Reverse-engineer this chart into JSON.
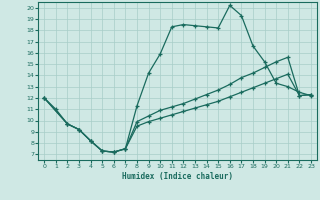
{
  "xlabel": "Humidex (Indice chaleur)",
  "bg_color": "#cfe8e4",
  "line_color": "#1a6b5e",
  "grid_color": "#a8cdc8",
  "xlim": [
    -0.5,
    23.5
  ],
  "ylim": [
    6.5,
    20.5
  ],
  "xticks": [
    0,
    1,
    2,
    3,
    4,
    5,
    6,
    7,
    8,
    9,
    10,
    11,
    12,
    13,
    14,
    15,
    16,
    17,
    18,
    19,
    20,
    21,
    22,
    23
  ],
  "yticks": [
    7,
    8,
    9,
    10,
    11,
    12,
    13,
    14,
    15,
    16,
    17,
    18,
    19,
    20
  ],
  "s1x": [
    0,
    1,
    2,
    3,
    4,
    5,
    6,
    7,
    8,
    9,
    10,
    11,
    12,
    13,
    14,
    15,
    16,
    17,
    18,
    19,
    20,
    21,
    22,
    23
  ],
  "s1y": [
    12,
    11,
    9.7,
    9.2,
    8.2,
    7.3,
    7.2,
    7.5,
    11.3,
    14.2,
    15.9,
    18.3,
    18.5,
    18.4,
    18.3,
    18.2,
    20.2,
    19.3,
    16.6,
    15.2,
    13.3,
    13.0,
    12.5,
    12.2
  ],
  "s2x": [
    0,
    2,
    3,
    4,
    5,
    6,
    7,
    8,
    9,
    10,
    11,
    12,
    13,
    14,
    15,
    16,
    17,
    18,
    19,
    20,
    21,
    22,
    23
  ],
  "s2y": [
    12,
    9.7,
    9.2,
    8.2,
    7.3,
    7.2,
    7.5,
    9.9,
    10.4,
    10.9,
    11.2,
    11.5,
    11.9,
    12.3,
    12.7,
    13.2,
    13.8,
    14.2,
    14.7,
    15.2,
    15.6,
    12.2,
    12.3
  ],
  "s3x": [
    0,
    2,
    3,
    4,
    5,
    6,
    7,
    8,
    9,
    10,
    11,
    12,
    13,
    14,
    15,
    16,
    17,
    18,
    19,
    20,
    21,
    22,
    23
  ],
  "s3y": [
    12,
    9.7,
    9.2,
    8.2,
    7.3,
    7.2,
    7.5,
    9.5,
    9.9,
    10.2,
    10.5,
    10.8,
    11.1,
    11.4,
    11.7,
    12.1,
    12.5,
    12.9,
    13.3,
    13.7,
    14.1,
    12.2,
    12.3
  ]
}
